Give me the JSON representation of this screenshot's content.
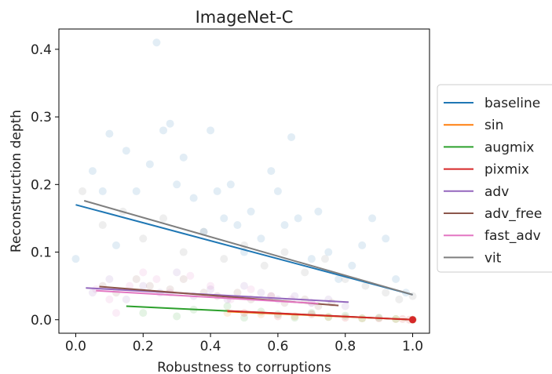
{
  "chart_data": {
    "type": "scatter",
    "title": "ImageNet-C",
    "xlabel": "Robustness to corruptions",
    "ylabel": "Reconstruction depth",
    "xlim": [
      -0.05,
      1.05
    ],
    "ylim": [
      -0.02,
      0.43
    ],
    "xticks": [
      0.0,
      0.2,
      0.4,
      0.6,
      0.8,
      1.0
    ],
    "xtick_labels": [
      "0.0",
      "0.2",
      "0.4",
      "0.6",
      "0.8",
      "1.0"
    ],
    "yticks": [
      0.0,
      0.1,
      0.2,
      0.3,
      0.4
    ],
    "ytick_labels": [
      "0.0",
      "0.1",
      "0.2",
      "0.3",
      "0.4"
    ],
    "grid": false,
    "legend_position": "right-outside",
    "series": [
      {
        "name": "baseline",
        "color": "#1f77b4",
        "trend": {
          "x": [
            0.0,
            1.0
          ],
          "y": [
            0.17,
            0.037
          ]
        },
        "points": [
          [
            0.0,
            0.09
          ],
          [
            0.05,
            0.22
          ],
          [
            0.08,
            0.19
          ],
          [
            0.1,
            0.275
          ],
          [
            0.12,
            0.11
          ],
          [
            0.15,
            0.25
          ],
          [
            0.18,
            0.19
          ],
          [
            0.22,
            0.23
          ],
          [
            0.24,
            0.41
          ],
          [
            0.26,
            0.28
          ],
          [
            0.28,
            0.29
          ],
          [
            0.3,
            0.2
          ],
          [
            0.32,
            0.24
          ],
          [
            0.35,
            0.18
          ],
          [
            0.38,
            0.13
          ],
          [
            0.4,
            0.28
          ],
          [
            0.42,
            0.19
          ],
          [
            0.44,
            0.15
          ],
          [
            0.46,
            0.2
          ],
          [
            0.48,
            0.14
          ],
          [
            0.5,
            0.1
          ],
          [
            0.52,
            0.16
          ],
          [
            0.55,
            0.12
          ],
          [
            0.58,
            0.22
          ],
          [
            0.6,
            0.19
          ],
          [
            0.62,
            0.14
          ],
          [
            0.64,
            0.27
          ],
          [
            0.66,
            0.15
          ],
          [
            0.7,
            0.09
          ],
          [
            0.72,
            0.16
          ],
          [
            0.75,
            0.1
          ],
          [
            0.78,
            0.06
          ],
          [
            0.82,
            0.08
          ],
          [
            0.85,
            0.11
          ],
          [
            0.88,
            0.15
          ],
          [
            0.92,
            0.12
          ],
          [
            0.95,
            0.06
          ],
          [
            0.98,
            0.04
          ]
        ]
      },
      {
        "name": "sin",
        "color": "#ff7f0e",
        "trend": {
          "x": [
            0.45,
            1.0
          ],
          "y": [
            0.012,
            0.0
          ]
        },
        "points": [
          [
            0.45,
            0.01
          ],
          [
            0.55,
            0.008
          ],
          [
            0.65,
            0.005
          ],
          [
            0.75,
            0.004
          ],
          [
            0.85,
            0.002
          ],
          [
            0.95,
            0.001
          ],
          [
            1.0,
            0.0
          ]
        ]
      },
      {
        "name": "augmix",
        "color": "#2ca02c",
        "trend": {
          "x": [
            0.15,
            1.0
          ],
          "y": [
            0.02,
            0.0
          ]
        },
        "points": [
          [
            0.2,
            0.01
          ],
          [
            0.3,
            0.005
          ],
          [
            0.35,
            0.015
          ],
          [
            0.45,
            0.02
          ],
          [
            0.5,
            0.003
          ],
          [
            0.55,
            0.012
          ],
          [
            0.6,
            0.008
          ],
          [
            0.65,
            0.003
          ],
          [
            0.7,
            0.01
          ],
          [
            0.75,
            0.004
          ],
          [
            0.8,
            0.006
          ],
          [
            0.85,
            0.002
          ],
          [
            0.9,
            0.003
          ],
          [
            0.95,
            0.001
          ],
          [
            1.0,
            0.0
          ]
        ]
      },
      {
        "name": "pixmix",
        "color": "#d62728",
        "trend": {
          "x": [
            0.45,
            1.0
          ],
          "y": [
            0.013,
            0.0
          ]
        },
        "points": [
          [
            0.5,
            0.01
          ],
          [
            0.6,
            0.005
          ],
          [
            0.7,
            0.008
          ],
          [
            0.8,
            0.003
          ],
          [
            0.9,
            0.002
          ],
          [
            0.97,
            0.001
          ],
          [
            0.99,
            0.0
          ],
          [
            1.0,
            0.0
          ]
        ]
      },
      {
        "name": "adv",
        "color": "#9467bd",
        "trend": {
          "x": [
            0.03,
            0.81
          ],
          "y": [
            0.047,
            0.026
          ]
        },
        "points": [
          [
            0.05,
            0.04
          ],
          [
            0.1,
            0.06
          ],
          [
            0.15,
            0.03
          ],
          [
            0.2,
            0.05
          ],
          [
            0.25,
            0.04
          ],
          [
            0.3,
            0.07
          ],
          [
            0.35,
            0.035
          ],
          [
            0.4,
            0.045
          ],
          [
            0.45,
            0.03
          ],
          [
            0.5,
            0.05
          ],
          [
            0.55,
            0.04
          ],
          [
            0.6,
            0.03
          ],
          [
            0.65,
            0.035
          ],
          [
            0.7,
            0.025
          ],
          [
            0.75,
            0.03
          ],
          [
            0.8,
            0.02
          ]
        ]
      },
      {
        "name": "adv_free",
        "color": "#8c564b",
        "trend": {
          "x": [
            0.07,
            0.78
          ],
          "y": [
            0.049,
            0.021
          ]
        },
        "points": [
          [
            0.08,
            0.05
          ],
          [
            0.12,
            0.04
          ],
          [
            0.18,
            0.06
          ],
          [
            0.22,
            0.05
          ],
          [
            0.28,
            0.045
          ],
          [
            0.32,
            0.06
          ],
          [
            0.38,
            0.04
          ],
          [
            0.42,
            0.035
          ],
          [
            0.48,
            0.04
          ],
          [
            0.52,
            0.03
          ],
          [
            0.58,
            0.035
          ],
          [
            0.62,
            0.025
          ],
          [
            0.68,
            0.03
          ],
          [
            0.72,
            0.02
          ],
          [
            0.76,
            0.025
          ]
        ]
      },
      {
        "name": "fast_adv",
        "color": "#e377c2",
        "trend": {
          "x": [
            0.06,
            0.72
          ],
          "y": [
            0.043,
            0.024
          ]
        },
        "points": [
          [
            0.06,
            0.045
          ],
          [
            0.1,
            0.03
          ],
          [
            0.12,
            0.01
          ],
          [
            0.16,
            0.05
          ],
          [
            0.2,
            0.07
          ],
          [
            0.24,
            0.06
          ],
          [
            0.28,
            0.04
          ],
          [
            0.34,
            0.065
          ],
          [
            0.4,
            0.05
          ],
          [
            0.46,
            0.03
          ],
          [
            0.52,
            0.045
          ],
          [
            0.58,
            0.035
          ],
          [
            0.64,
            0.03
          ],
          [
            0.7,
            0.025
          ]
        ]
      },
      {
        "name": "vit",
        "color": "#7f7f7f",
        "trend": {
          "x": [
            0.025,
            1.0
          ],
          "y": [
            0.176,
            0.037
          ]
        },
        "points": [
          [
            0.02,
            0.19
          ],
          [
            0.08,
            0.14
          ],
          [
            0.14,
            0.16
          ],
          [
            0.2,
            0.12
          ],
          [
            0.26,
            0.15
          ],
          [
            0.32,
            0.1
          ],
          [
            0.38,
            0.13
          ],
          [
            0.44,
            0.09
          ],
          [
            0.5,
            0.11
          ],
          [
            0.56,
            0.08
          ],
          [
            0.62,
            0.1
          ],
          [
            0.68,
            0.07
          ],
          [
            0.74,
            0.09
          ],
          [
            0.8,
            0.06
          ],
          [
            0.86,
            0.05
          ],
          [
            0.92,
            0.04
          ],
          [
            0.96,
            0.03
          ],
          [
            1.0,
            0.035
          ]
        ]
      }
    ]
  }
}
